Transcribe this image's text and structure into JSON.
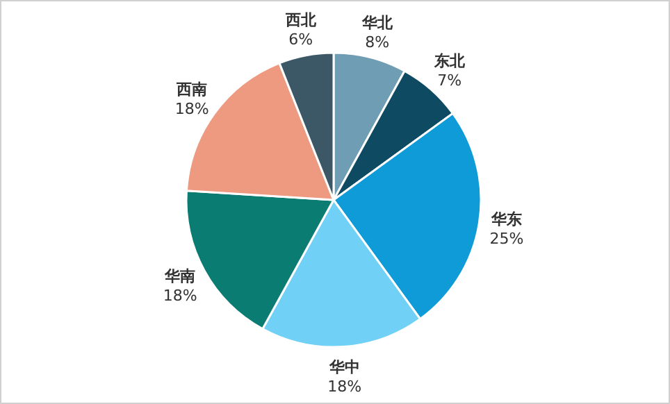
{
  "chart_data": {
    "type": "pie",
    "categories": [
      "华北",
      "东北",
      "华东",
      "华中",
      "华南",
      "西南",
      "西北"
    ],
    "values": [
      8,
      7,
      25,
      18,
      18,
      18,
      6
    ],
    "colors": [
      "#6f9db3",
      "#0e4a62",
      "#0f9bd7",
      "#70d0f5",
      "#0b7c72",
      "#ee9a80",
      "#3c5866"
    ],
    "value_labels": [
      "8%",
      "7%",
      "25%",
      "18%",
      "18%",
      "18%",
      "6%"
    ]
  }
}
